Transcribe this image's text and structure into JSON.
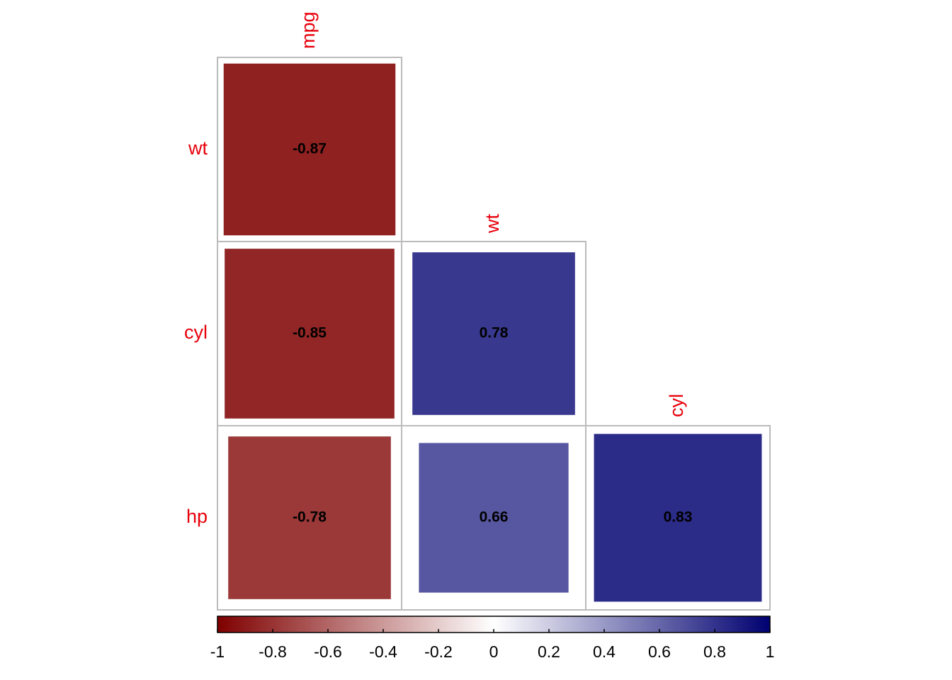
{
  "chart_data": {
    "type": "corrplot",
    "rows": [
      "wt",
      "cyl",
      "hp"
    ],
    "columns": [
      "mpg",
      "wt",
      "cyl"
    ],
    "values": [
      [
        -0.87,
        null,
        null
      ],
      [
        -0.85,
        0.78,
        null
      ],
      [
        -0.78,
        0.66,
        0.83
      ]
    ],
    "zlim": [
      -1,
      1
    ],
    "zticks": [
      -1,
      -0.8,
      -0.6,
      -0.4,
      -0.2,
      0,
      0.2,
      0.4,
      0.6,
      0.8,
      1
    ],
    "colorscale": [
      "#7F0000",
      "#FFFFFF",
      "#000070"
    ],
    "label_color": "#E8000B"
  }
}
